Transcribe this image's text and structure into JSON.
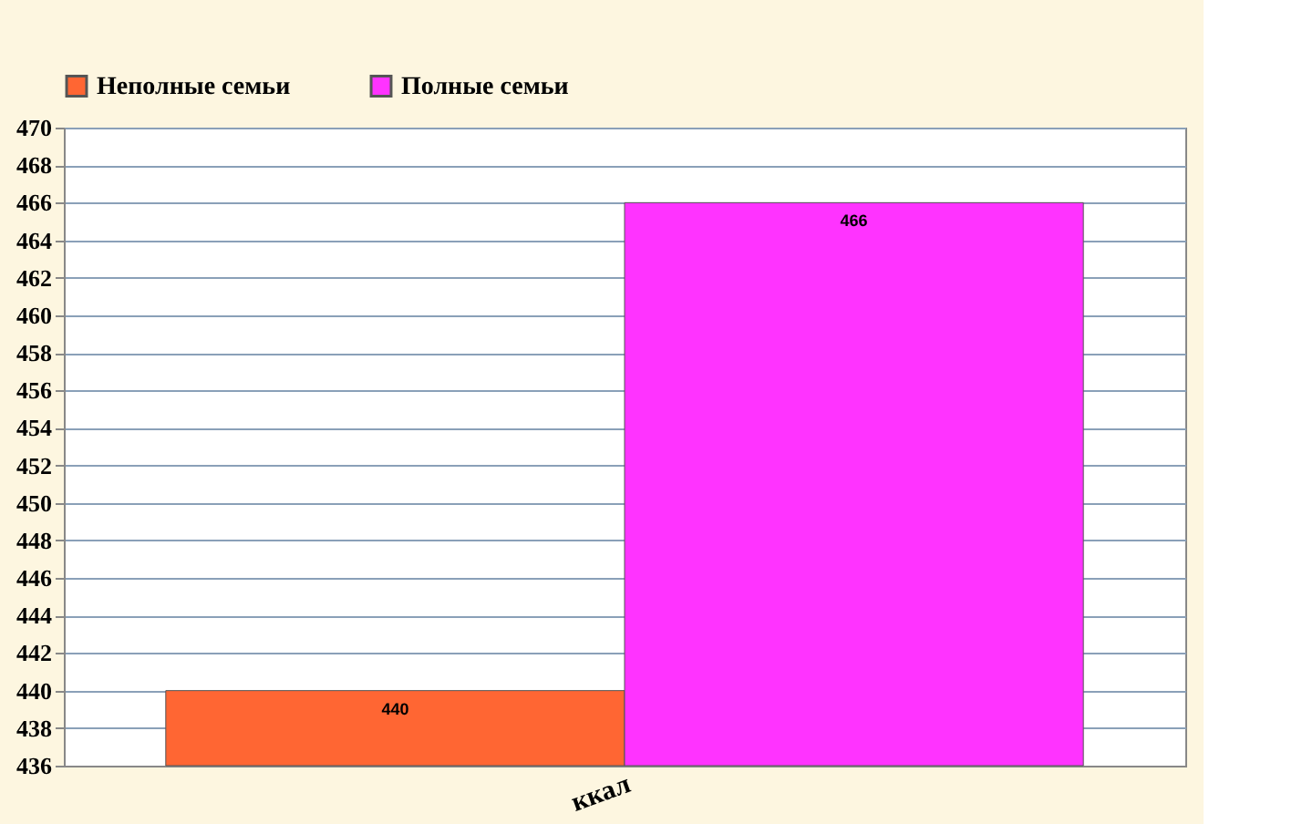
{
  "chart_data": {
    "type": "bar",
    "categories": [
      "ккал"
    ],
    "series": [
      {
        "name": "Неполные семьи",
        "color": "#ff6633",
        "values": [
          440
        ]
      },
      {
        "name": "Полные семьи",
        "color": "#ff33ff",
        "values": [
          466
        ]
      }
    ],
    "ylim": [
      436,
      470
    ],
    "yticks": [
      436,
      438,
      440,
      442,
      444,
      446,
      448,
      450,
      452,
      454,
      456,
      458,
      460,
      462,
      464,
      466,
      468,
      470
    ],
    "grid": "y",
    "legend": "top left",
    "data_labels": true
  }
}
